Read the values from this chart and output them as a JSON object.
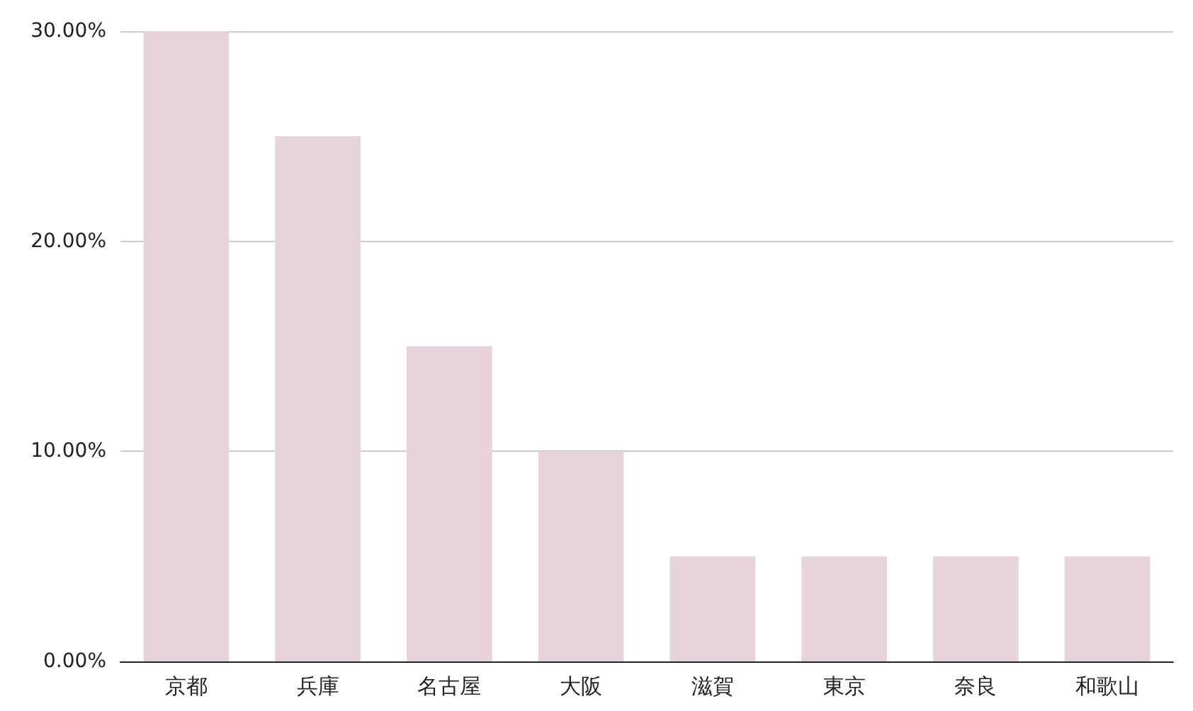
{
  "chart_data": {
    "type": "bar",
    "categories": [
      "京都",
      "兵庫",
      "名古屋",
      "大阪",
      "滋賀",
      "東京",
      "奈良",
      "和歌山"
    ],
    "values": [
      30,
      25,
      15,
      10,
      5,
      5,
      5,
      5
    ],
    "color": "#e6d3dc",
    "ylim": [
      0,
      30
    ],
    "yticks": [
      {
        "value": 0,
        "label": "0.00%"
      },
      {
        "value": 10,
        "label": "10.00%"
      },
      {
        "value": 20,
        "label": "20.00%"
      },
      {
        "value": 30,
        "label": "30.00%"
      }
    ],
    "grid": "y"
  }
}
